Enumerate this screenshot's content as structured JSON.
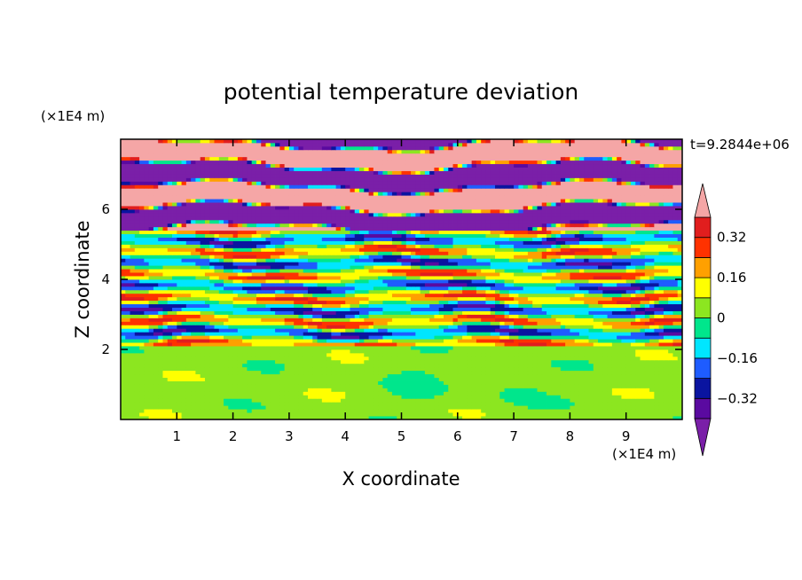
{
  "chart_data": {
    "type": "heatmap",
    "title": "potential temperature deviation",
    "xlabel": "X coordinate",
    "ylabel": "Z coordinate",
    "x_unit": "(×1E4 m)",
    "y_unit": "(×1E4 m)",
    "time_label": "t=9.2844e+06",
    "xlim": [
      0,
      10
    ],
    "ylim": [
      0,
      8
    ],
    "x_ticks": [
      1,
      2,
      3,
      4,
      5,
      6,
      7,
      8,
      9
    ],
    "y_ticks": [
      2,
      4,
      6
    ],
    "colorbar": {
      "levels": [
        -0.4,
        -0.32,
        -0.24,
        -0.16,
        -0.08,
        0,
        0.08,
        0.16,
        0.24,
        0.32,
        0.4
      ],
      "labeled_ticks": [
        "0.32",
        "0.16",
        "0",
        "−0.16",
        "−0.32"
      ],
      "labeled_values": [
        0.32,
        0.16,
        0,
        -0.16,
        -0.32
      ],
      "colors": [
        "#7a1fa8",
        "#5a0aa0",
        "#0a14a0",
        "#1e5cff",
        "#00e6ff",
        "#00e68c",
        "#8ce620",
        "#ffff00",
        "#ffa000",
        "#ff3200",
        "#e11e1e",
        "#f5a6a6"
      ],
      "extend": "both"
    }
  }
}
